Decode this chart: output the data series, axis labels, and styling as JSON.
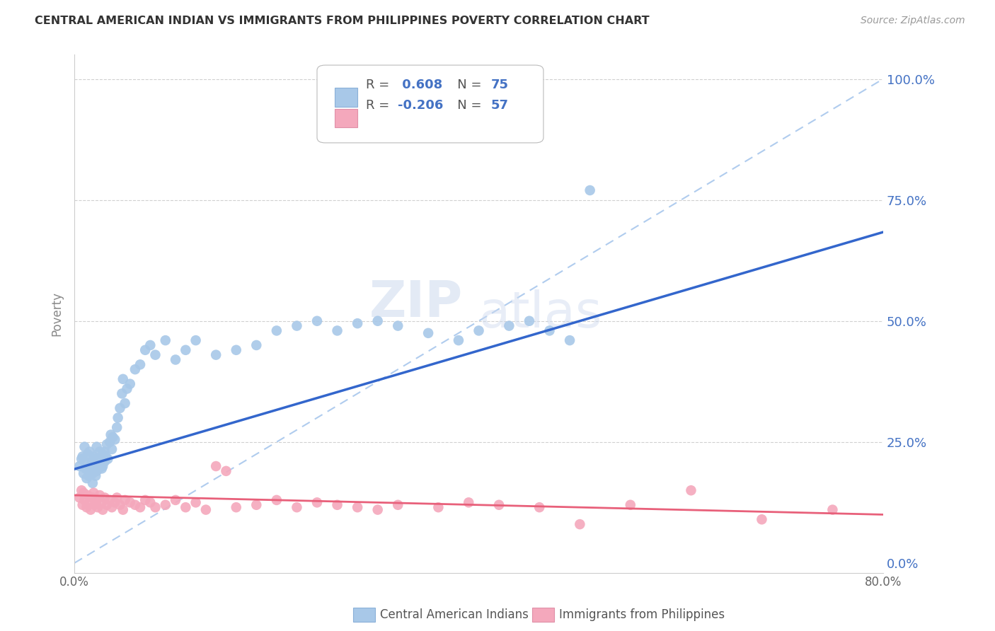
{
  "title": "CENTRAL AMERICAN INDIAN VS IMMIGRANTS FROM PHILIPPINES POVERTY CORRELATION CHART",
  "source": "Source: ZipAtlas.com",
  "ylabel_label": "Poverty",
  "xlim": [
    0.0,
    0.8
  ],
  "ylim": [
    -0.02,
    1.05
  ],
  "r_blue": 0.608,
  "n_blue": 75,
  "r_pink": -0.206,
  "n_pink": 57,
  "legend_label_blue": "Central American Indians",
  "legend_label_pink": "Immigrants from Philippines",
  "blue_color": "#a8c8e8",
  "pink_color": "#f4a8bc",
  "blue_line_color": "#3366cc",
  "pink_line_color": "#e8607a",
  "diag_line_color": "#b0ccee",
  "watermark_zip": "ZIP",
  "watermark_atlas": "atlas",
  "blue_x": [
    0.005,
    0.007,
    0.008,
    0.009,
    0.01,
    0.01,
    0.011,
    0.012,
    0.013,
    0.014,
    0.015,
    0.015,
    0.016,
    0.017,
    0.018,
    0.018,
    0.019,
    0.02,
    0.02,
    0.021,
    0.022,
    0.022,
    0.023,
    0.024,
    0.025,
    0.025,
    0.026,
    0.027,
    0.028,
    0.028,
    0.03,
    0.03,
    0.031,
    0.032,
    0.033,
    0.035,
    0.036,
    0.037,
    0.038,
    0.04,
    0.042,
    0.043,
    0.045,
    0.047,
    0.048,
    0.05,
    0.052,
    0.055,
    0.06,
    0.065,
    0.07,
    0.075,
    0.08,
    0.09,
    0.1,
    0.11,
    0.12,
    0.14,
    0.16,
    0.18,
    0.2,
    0.22,
    0.24,
    0.26,
    0.28,
    0.3,
    0.32,
    0.35,
    0.38,
    0.4,
    0.43,
    0.45,
    0.47,
    0.49,
    0.51
  ],
  "blue_y": [
    0.2,
    0.215,
    0.22,
    0.185,
    0.21,
    0.24,
    0.195,
    0.175,
    0.225,
    0.18,
    0.2,
    0.23,
    0.19,
    0.21,
    0.185,
    0.165,
    0.22,
    0.195,
    0.215,
    0.18,
    0.19,
    0.24,
    0.21,
    0.195,
    0.23,
    0.2,
    0.215,
    0.195,
    0.225,
    0.2,
    0.21,
    0.23,
    0.22,
    0.245,
    0.215,
    0.25,
    0.265,
    0.235,
    0.26,
    0.255,
    0.28,
    0.3,
    0.32,
    0.35,
    0.38,
    0.33,
    0.36,
    0.37,
    0.4,
    0.41,
    0.44,
    0.45,
    0.43,
    0.46,
    0.42,
    0.44,
    0.46,
    0.43,
    0.44,
    0.45,
    0.48,
    0.49,
    0.5,
    0.48,
    0.495,
    0.5,
    0.49,
    0.475,
    0.46,
    0.48,
    0.49,
    0.5,
    0.48,
    0.46,
    0.77
  ],
  "pink_x": [
    0.005,
    0.007,
    0.008,
    0.009,
    0.01,
    0.012,
    0.013,
    0.015,
    0.016,
    0.018,
    0.019,
    0.02,
    0.022,
    0.023,
    0.025,
    0.027,
    0.028,
    0.03,
    0.032,
    0.035,
    0.037,
    0.04,
    0.042,
    0.045,
    0.048,
    0.05,
    0.055,
    0.06,
    0.065,
    0.07,
    0.075,
    0.08,
    0.09,
    0.1,
    0.11,
    0.12,
    0.13,
    0.14,
    0.15,
    0.16,
    0.18,
    0.2,
    0.22,
    0.24,
    0.26,
    0.28,
    0.3,
    0.32,
    0.36,
    0.39,
    0.42,
    0.46,
    0.5,
    0.55,
    0.61,
    0.68,
    0.75
  ],
  "pink_y": [
    0.135,
    0.15,
    0.12,
    0.145,
    0.13,
    0.115,
    0.14,
    0.125,
    0.11,
    0.135,
    0.145,
    0.12,
    0.13,
    0.115,
    0.14,
    0.125,
    0.11,
    0.135,
    0.12,
    0.13,
    0.115,
    0.125,
    0.135,
    0.12,
    0.11,
    0.13,
    0.125,
    0.12,
    0.115,
    0.13,
    0.125,
    0.115,
    0.12,
    0.13,
    0.115,
    0.125,
    0.11,
    0.2,
    0.19,
    0.115,
    0.12,
    0.13,
    0.115,
    0.125,
    0.12,
    0.115,
    0.11,
    0.12,
    0.115,
    0.125,
    0.12,
    0.115,
    0.08,
    0.12,
    0.15,
    0.09,
    0.11
  ]
}
